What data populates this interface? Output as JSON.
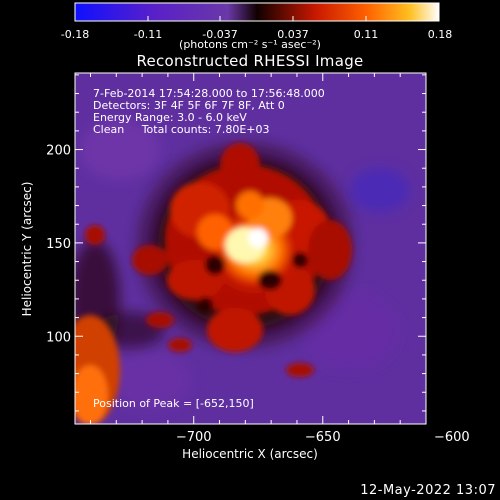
{
  "colorbar": {
    "tick_labels": [
      "-0.18",
      "-0.11",
      "-0.037",
      "0.037",
      "0.11",
      "0.18"
    ],
    "units": "(photons cm⁻² s⁻¹ asec⁻²)",
    "colors": [
      "#1010ff",
      "#5a20c8",
      "#6a38a8",
      "#100000",
      "#c81800",
      "#ff6000",
      "#ffc020",
      "#ffffff"
    ]
  },
  "image": {
    "title": "Reconstructed RHESSI Image",
    "annotations": {
      "time": "7-Feb-2014 17:54:28.000 to 17:56:48.000",
      "detectors": "Detectors: 3F 4F 5F 6F 7F 8F, Att 0",
      "energy": "Energy Range: 3.0 - 6.0 keV",
      "clean": "Clean     Total counts: 7.80E+03",
      "peak": "Position of Peak = [-652,150]"
    },
    "timestamp": "12-May-2022 13:07"
  },
  "chart_data": {
    "type": "heatmap",
    "title": "Reconstructed RHESSI Image",
    "xlabel": "Heliocentric X (arcsec)",
    "ylabel": "Heliocentric Y (arcsec)",
    "x_ticks": [
      -700,
      -650,
      -600
    ],
    "y_ticks": [
      100,
      150,
      200
    ],
    "xlim": [
      -746,
      -610
    ],
    "ylim": [
      53,
      241
    ],
    "colorbar_range": [
      -0.18,
      0.18
    ],
    "peak": {
      "x": -652,
      "y": 150
    },
    "sources": [
      {
        "x": -652,
        "y": 150,
        "value": 0.18
      },
      {
        "x": -645,
        "y": 157,
        "value": 0.14
      },
      {
        "x": -668,
        "y": 168,
        "value": 0.11
      },
      {
        "x": -640,
        "y": 175,
        "value": 0.1
      },
      {
        "x": -675,
        "y": 140,
        "value": 0.09
      },
      {
        "x": -630,
        "y": 145,
        "value": 0.09
      },
      {
        "x": -660,
        "y": 125,
        "value": 0.08
      },
      {
        "x": -700,
        "y": 130,
        "value": 0.06
      },
      {
        "x": -735,
        "y": 75,
        "value": 0.12
      },
      {
        "x": -718,
        "y": 150,
        "value": 0.04
      }
    ]
  }
}
